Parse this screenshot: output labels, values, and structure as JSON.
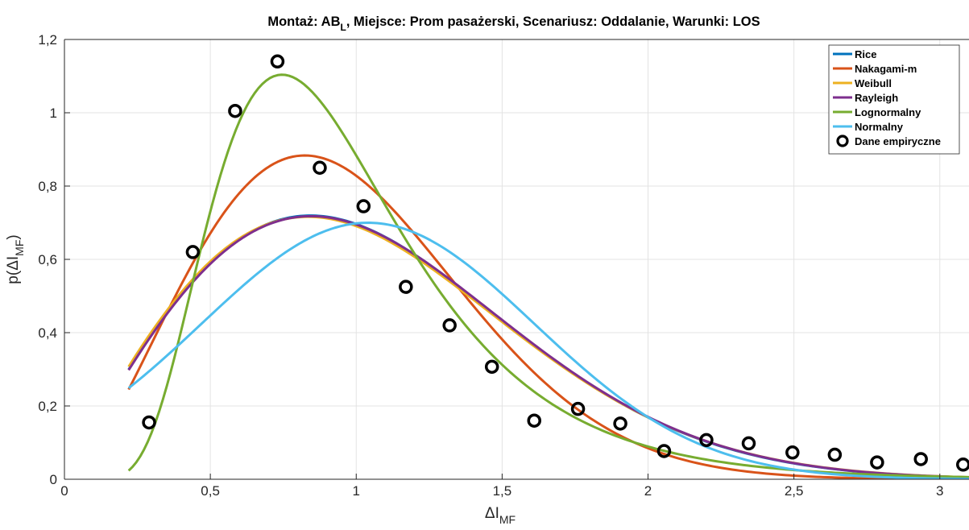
{
  "chart_data": {
    "type": "line",
    "title": {
      "prefix": "Montaż: AB",
      "subscript": "L",
      "suffix": ", Miejsce: Prom pasażerski, Scenariusz: Oddalanie, Warunki: LOS"
    },
    "xlabel": {
      "base": "ΔI",
      "subscript": "MF"
    },
    "ylabel": {
      "prefix": "p(ΔI",
      "subscript": "MF",
      "suffix": ")"
    },
    "xlim": [
      0,
      3.1
    ],
    "ylim": [
      0,
      1.2
    ],
    "x_ticks": [
      0,
      0.5,
      1,
      1.5,
      2,
      2.5,
      3
    ],
    "x_tick_labels": [
      "0",
      "0,5",
      "1",
      "1,5",
      "2",
      "2,5",
      "3"
    ],
    "y_ticks": [
      0,
      0.2,
      0.4,
      0.6,
      0.8,
      1.0,
      1.2
    ],
    "y_tick_labels": [
      "0",
      "0,2",
      "0,4",
      "0,6",
      "0,8",
      "1",
      "1,2"
    ],
    "grid": true,
    "legend_position": "top-right",
    "series": [
      {
        "name": "Rice",
        "color": "#0072BD",
        "dist": "rice",
        "params": {
          "nu": 0.1,
          "sigma": 0.84
        }
      },
      {
        "name": "Nakagami-m",
        "color": "#D95319",
        "dist": "nakagami",
        "params": {
          "m": 1.25,
          "omega": 1.13
        }
      },
      {
        "name": "Weibull",
        "color": "#EDB120",
        "dist": "weibull",
        "params": {
          "k": 1.98,
          "lambda": 1.19
        }
      },
      {
        "name": "Rayleigh",
        "color": "#7E2F8E",
        "dist": "rayleigh",
        "params": {
          "sigma": 0.845
        }
      },
      {
        "name": "Lognormalny",
        "color": "#77AC30",
        "dist": "lognormal",
        "params": {
          "mu": -0.1,
          "sigma": 0.44
        }
      },
      {
        "name": "Normalny",
        "color": "#4DBEEE",
        "dist": "normal",
        "params": {
          "mu": 1.04,
          "sigma": 0.57
        }
      }
    ],
    "curve_range": [
      0.22,
      3.1
    ],
    "empirical": {
      "name": "Dane empiryczne",
      "x": [
        0.29,
        0.44,
        0.585,
        0.73,
        0.875,
        1.025,
        1.17,
        1.32,
        1.465,
        1.61,
        1.76,
        1.905,
        2.055,
        2.2,
        2.345,
        2.495,
        2.64,
        2.785,
        2.935,
        3.08
      ],
      "y": [
        0.155,
        0.62,
        1.005,
        1.14,
        0.85,
        0.745,
        0.525,
        0.42,
        0.307,
        0.16,
        0.192,
        0.152,
        0.077,
        0.107,
        0.098,
        0.073,
        0.067,
        0.046,
        0.055,
        0.04
      ]
    }
  }
}
